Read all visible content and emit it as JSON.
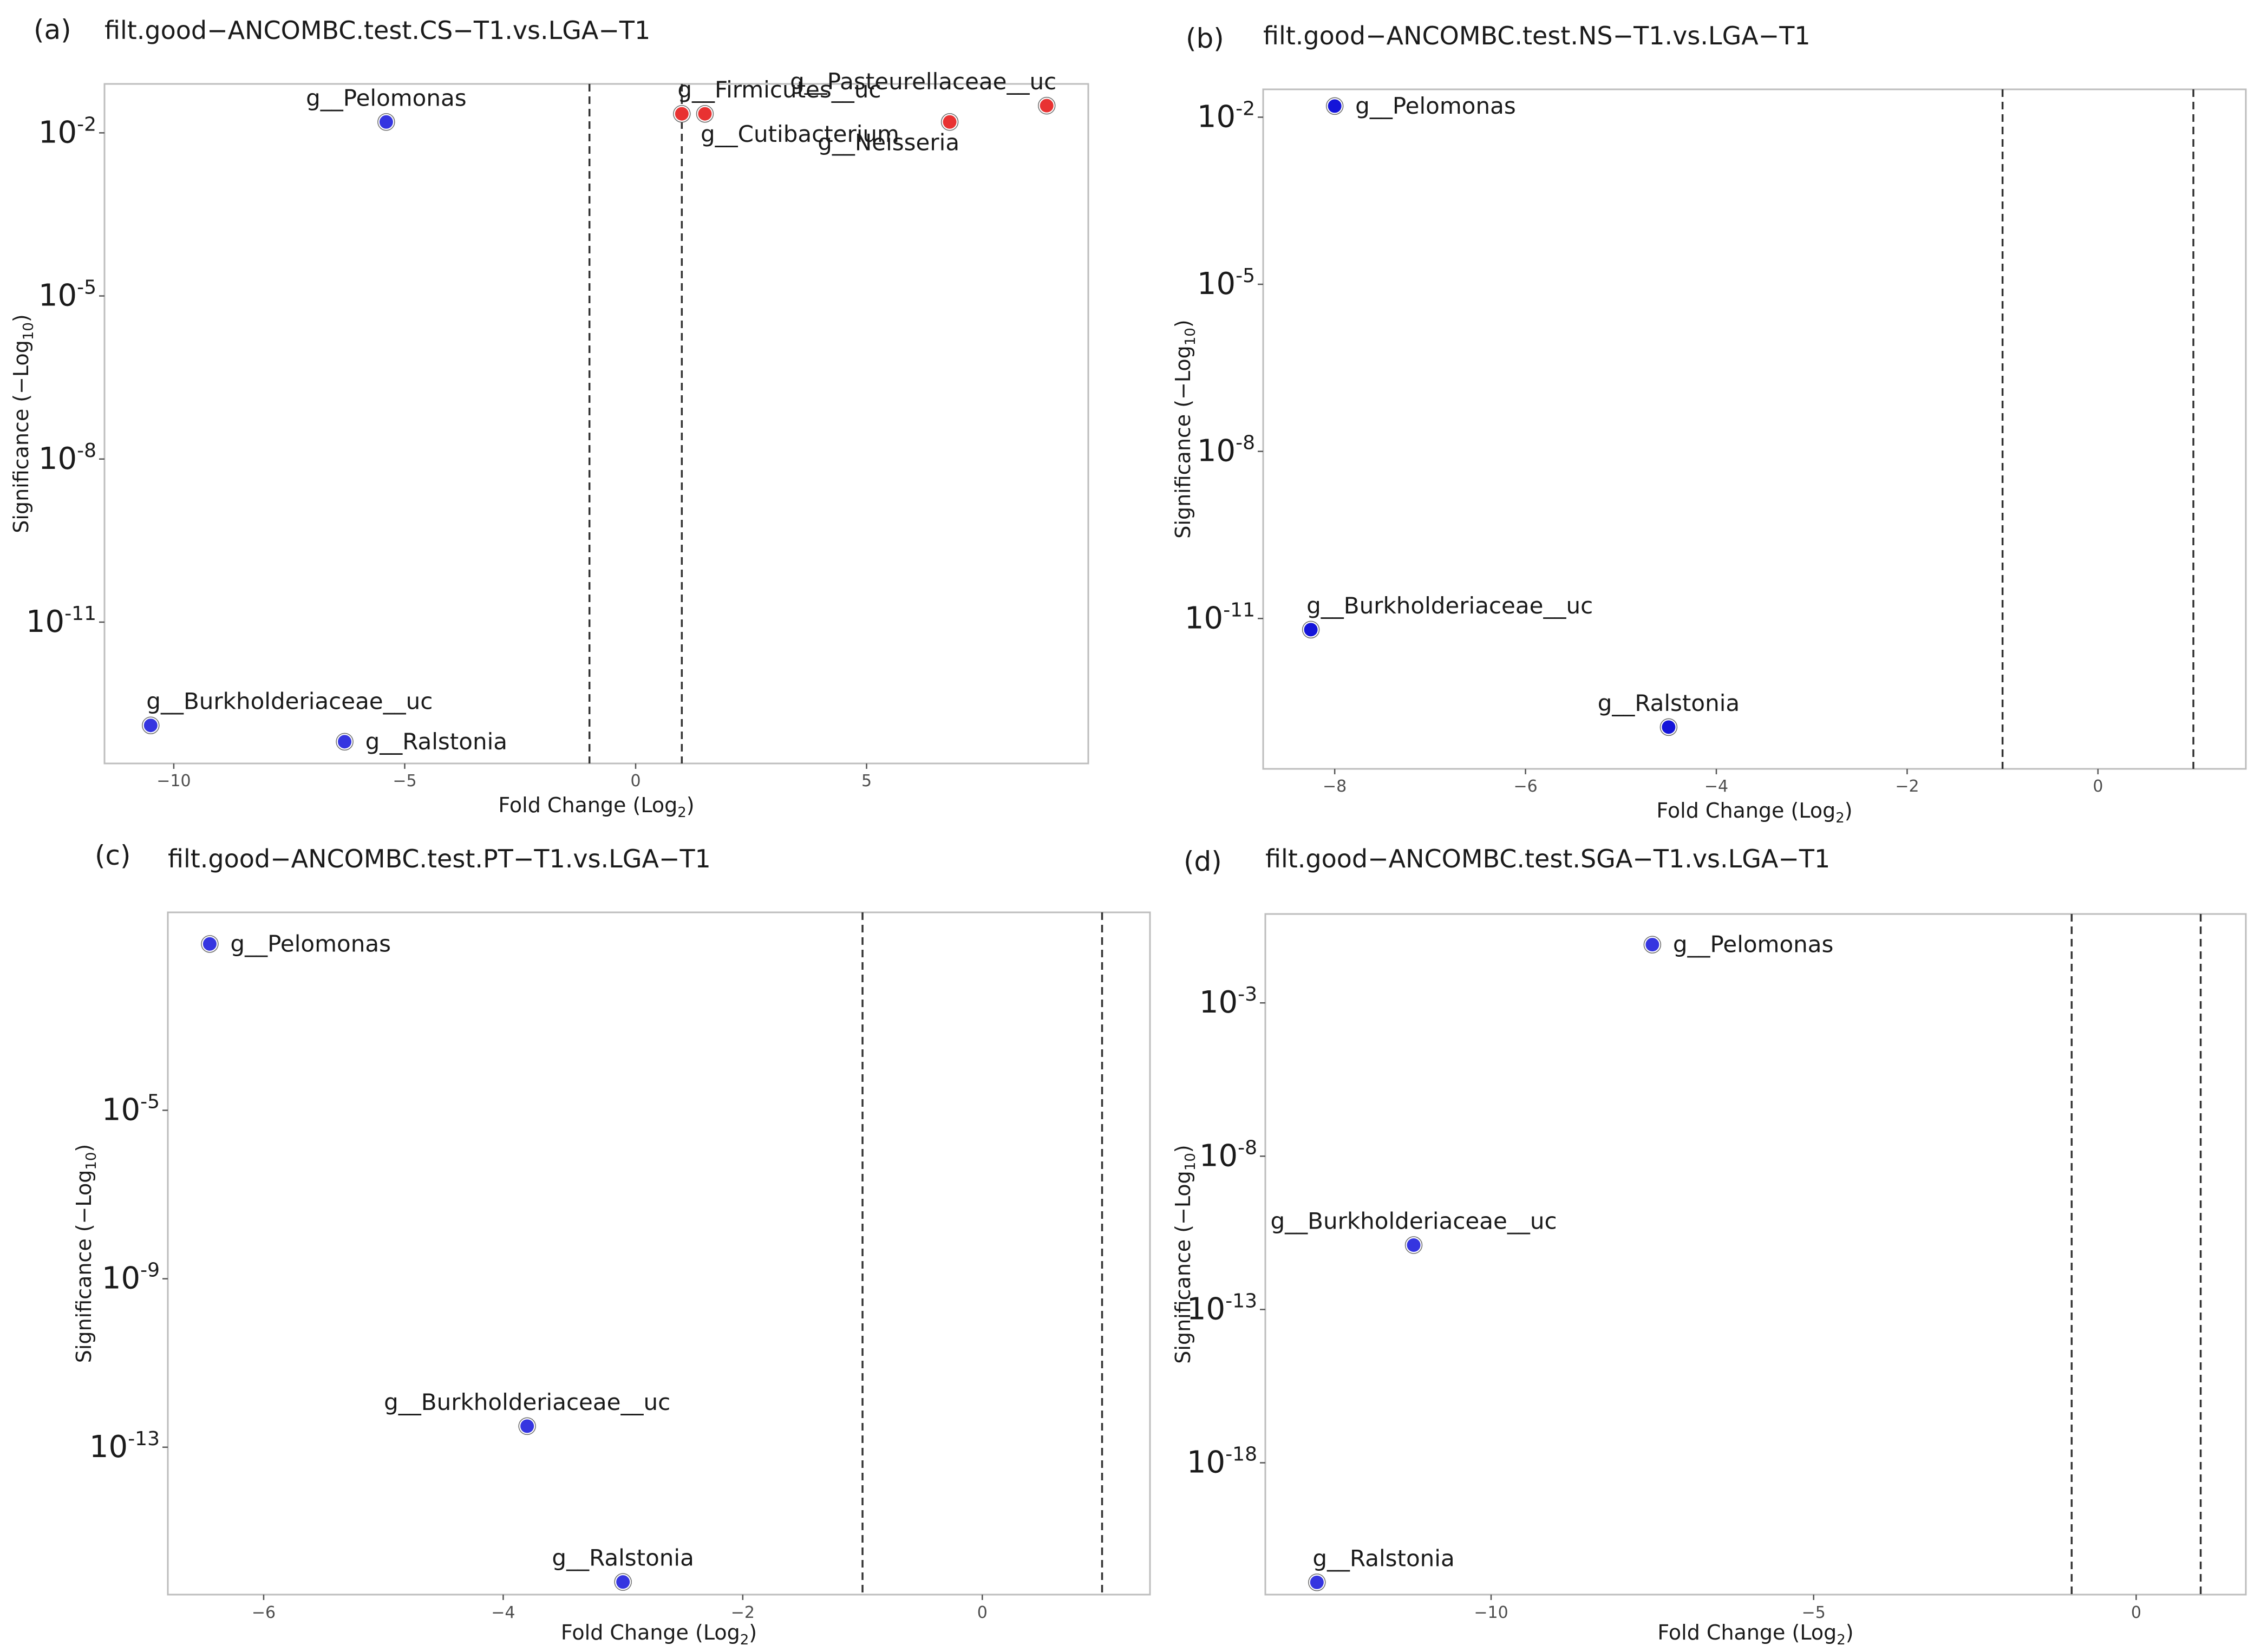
{
  "chart_data": [
    {
      "type": "scatter",
      "letter": "(a)",
      "title": "filt.good−ANCOMBC.test.CS−T1.vs.LGA−T1",
      "xlabel": "Fold Change (Log",
      "xlabel_sub": "2",
      "xlabel_end": ")",
      "ylabel": "Significance (−Log",
      "ylabel_sub": "10",
      "ylabel_end": ")",
      "xlim": [
        -11.5,
        9.8
      ],
      "ylim_log10": [
        -13.6,
        -1.1
      ],
      "xticks": [
        -10,
        -5,
        0,
        5
      ],
      "xtick_labels": [
        "−10",
        "−5",
        "0",
        "5"
      ],
      "yticks_log10": [
        -2,
        -5,
        -8,
        -11
      ],
      "ytick_base": "10",
      "ytick_exponents": [
        "-2",
        "-5",
        "-8",
        "-11"
      ],
      "vlines": [
        -1,
        1
      ],
      "points": [
        {
          "label": "g__Pelomonas",
          "x": -5.4,
          "log10p": -1.8,
          "color": "#3535e0",
          "label_dx": 0,
          "label_dy": -1
        },
        {
          "label": "g__Firmicutes__uc",
          "x": 1.0,
          "log10p": -1.65,
          "color": "#e83232",
          "label_dx": 1,
          "label_dy": -1
        },
        {
          "label": "g__Cutibacterium",
          "x": 1.5,
          "log10p": -1.65,
          "color": "#e83232",
          "label_dx": 1,
          "label_dy": 1
        },
        {
          "label": "g__Pasteurellaceae__uc",
          "x": 8.9,
          "log10p": -1.5,
          "color": "#e83232",
          "label_dx": -1,
          "label_dy": -1
        },
        {
          "label": "g__Neisseria",
          "x": 6.8,
          "log10p": -1.8,
          "color": "#e83232",
          "label_dx": -1,
          "label_dy": 1
        },
        {
          "label": "g__Burkholderiaceae__uc",
          "x": -10.5,
          "log10p": -12.9,
          "color": "#3535e0",
          "label_dx": 1,
          "label_dy": -1
        },
        {
          "label": "g__Ralstonia",
          "x": -6.3,
          "log10p": -13.2,
          "color": "#3535e0",
          "label_dx": 1,
          "label_dy": 0
        }
      ]
    },
    {
      "type": "scatter",
      "letter": "(b)",
      "title": "filt.good−ANCOMBC.test.NS−T1.vs.LGA−T1",
      "xlabel": "Fold Change (Log",
      "xlabel_sub": "2",
      "xlabel_end": ")",
      "ylabel": "Significance (−Log",
      "ylabel_sub": "10",
      "ylabel_end": ")",
      "xlim": [
        -8.75,
        1.55
      ],
      "ylim_log10": [
        -13.7,
        -1.5
      ],
      "xticks": [
        -8,
        -6,
        -4,
        -2,
        0
      ],
      "xtick_labels": [
        "−8",
        "−6",
        "−4",
        "−2",
        "0"
      ],
      "yticks_log10": [
        -2,
        -5,
        -8,
        -11
      ],
      "ytick_base": "10",
      "ytick_exponents": [
        "-2",
        "-5",
        "-8",
        "-11"
      ],
      "vlines": [
        -1,
        1
      ],
      "points": [
        {
          "label": "g__Pelomonas",
          "x": -8.0,
          "log10p": -1.8,
          "color": "#1414d9",
          "label_dx": 1,
          "label_dy": 0
        },
        {
          "label": "g__Burkholderiaceae__uc",
          "x": -8.25,
          "log10p": -11.2,
          "color": "#1414d9",
          "label_dx": 1,
          "label_dy": -1
        },
        {
          "label": "g__Ralstonia",
          "x": -4.5,
          "log10p": -12.95,
          "color": "#1414d9",
          "label_dx": 0,
          "label_dy": -1
        }
      ]
    },
    {
      "type": "scatter",
      "letter": "(c)",
      "title": "filt.good−ANCOMBC.test.PT−T1.vs.LGA−T1",
      "xlabel": "Fold Change (Log",
      "xlabel_sub": "2",
      "xlabel_end": ")",
      "ylabel": "Significance (−Log",
      "ylabel_sub": "10",
      "ylabel_end": ")",
      "xlim": [
        -6.8,
        1.4
      ],
      "ylim_log10": [
        -16.5,
        -0.3
      ],
      "xticks": [
        -6,
        -4,
        -2,
        0
      ],
      "xtick_labels": [
        "−6",
        "−4",
        "−2",
        "0"
      ],
      "yticks_log10": [
        -5,
        -9,
        -13
      ],
      "ytick_base": "10",
      "ytick_exponents": [
        "-5",
        "-9",
        "-13"
      ],
      "vlines": [
        -1,
        1
      ],
      "points": [
        {
          "label": "g__Pelomonas",
          "x": -6.45,
          "log10p": -1.05,
          "color": "#3535e0",
          "label_dx": 1,
          "label_dy": 0
        },
        {
          "label": "g__Burkholderiaceae__uc",
          "x": -3.8,
          "log10p": -12.5,
          "color": "#3535e0",
          "label_dx": 0,
          "label_dy": -1
        },
        {
          "label": "g__Ralstonia",
          "x": -3.0,
          "log10p": -16.2,
          "color": "#3535e0",
          "label_dx": 0,
          "label_dy": -1
        }
      ]
    },
    {
      "type": "scatter",
      "letter": "(d)",
      "title": "filt.good−ANCOMBC.test.SGA−T1.vs.LGA−T1",
      "xlabel": "Fold Change (Log",
      "xlabel_sub": "2",
      "xlabel_end": ")",
      "ylabel": "Significance (−Log",
      "ylabel_sub": "10",
      "ylabel_end": ")",
      "xlim": [
        -13.5,
        1.7
      ],
      "ylim_log10": [
        -22.3,
        -0.1
      ],
      "xticks": [
        -10,
        -5,
        0
      ],
      "xtick_labels": [
        "−10",
        "−5",
        "0"
      ],
      "yticks_log10": [
        -3,
        -8,
        -13,
        -18
      ],
      "ytick_base": "10",
      "ytick_exponents": [
        "-3",
        "-8",
        "-13",
        "-18"
      ],
      "vlines": [
        -1,
        1
      ],
      "points": [
        {
          "label": "g__Pelomonas",
          "x": -7.5,
          "log10p": -1.1,
          "color": "#3535e0",
          "label_dx": 1,
          "label_dy": 0
        },
        {
          "label": "g__Burkholderiaceae__uc",
          "x": -11.2,
          "log10p": -10.9,
          "color": "#3535e0",
          "label_dx": 0,
          "label_dy": -1
        },
        {
          "label": "g__Ralstonia",
          "x": -12.7,
          "log10p": -21.9,
          "color": "#3535e0",
          "label_dx": 1,
          "label_dy": -1
        }
      ]
    }
  ]
}
